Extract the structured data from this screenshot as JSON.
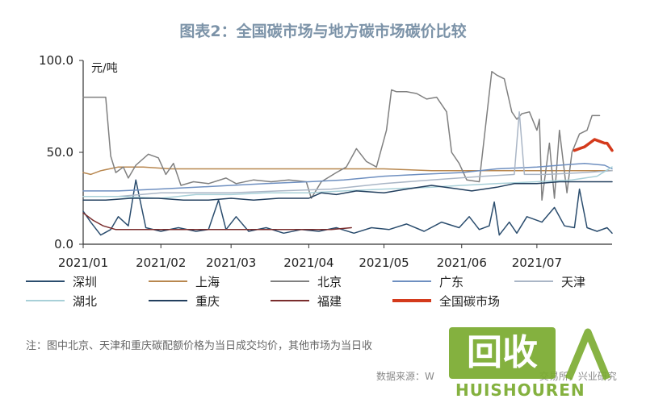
{
  "title": "图表2：全国碳市场与地方碳市场碳价比较",
  "note": "注：图中北京、天津和重庆碳配额价格为当日成交均价，其他市场为当日收",
  "source": "数据来源：W",
  "source_tail": "交易所，兴业研究",
  "watermark": {
    "box_text": "回收",
    "brand": "HUISHOUREN"
  },
  "chart_data": {
    "type": "line",
    "unit_label": "元/吨",
    "ylim": [
      0,
      100
    ],
    "yticks": [
      "0.0",
      "50.0",
      "100.0"
    ],
    "xlim": [
      "2021-01-01",
      "2021-07-31"
    ],
    "xticks": [
      {
        "label": "2021/01",
        "date": "2021-01-01"
      },
      {
        "label": "2021/02",
        "date": "2021-02-01"
      },
      {
        "label": "2021/03",
        "date": "2021-03-01"
      },
      {
        "label": "2021/04",
        "date": "2021-04-01"
      },
      {
        "label": "2021/05",
        "date": "2021-05-01"
      },
      {
        "label": "2021/06",
        "date": "2021-06-01"
      },
      {
        "label": "2021/07",
        "date": "2021-07-01"
      }
    ],
    "grid": false,
    "legend_position": "bottom",
    "series": [
      {
        "name": "深圳",
        "color": "#2b4d6e",
        "width": 1.5,
        "points": [
          [
            "2021-01-01",
            18
          ],
          [
            "2021-01-04",
            12
          ],
          [
            "2021-01-08",
            5
          ],
          [
            "2021-01-12",
            8
          ],
          [
            "2021-01-15",
            15
          ],
          [
            "2021-01-19",
            10
          ],
          [
            "2021-01-22",
            35
          ],
          [
            "2021-01-26",
            9
          ],
          [
            "2021-02-01",
            7
          ],
          [
            "2021-02-08",
            9
          ],
          [
            "2021-02-15",
            7
          ],
          [
            "2021-02-20",
            8
          ],
          [
            "2021-02-24",
            24
          ],
          [
            "2021-02-27",
            8
          ],
          [
            "2021-03-03",
            15
          ],
          [
            "2021-03-08",
            7
          ],
          [
            "2021-03-15",
            9
          ],
          [
            "2021-03-22",
            6
          ],
          [
            "2021-03-29",
            8
          ],
          [
            "2021-04-05",
            7
          ],
          [
            "2021-04-12",
            9
          ],
          [
            "2021-04-19",
            6
          ],
          [
            "2021-04-26",
            9
          ],
          [
            "2021-05-03",
            8
          ],
          [
            "2021-05-10",
            11
          ],
          [
            "2021-05-17",
            7
          ],
          [
            "2021-05-24",
            12
          ],
          [
            "2021-05-31",
            9
          ],
          [
            "2021-06-04",
            15
          ],
          [
            "2021-06-08",
            8
          ],
          [
            "2021-06-12",
            10
          ],
          [
            "2021-06-14",
            23
          ],
          [
            "2021-06-16",
            5
          ],
          [
            "2021-06-20",
            12
          ],
          [
            "2021-06-23",
            6
          ],
          [
            "2021-06-27",
            15
          ],
          [
            "2021-07-03",
            12
          ],
          [
            "2021-07-08",
            20
          ],
          [
            "2021-07-12",
            10
          ],
          [
            "2021-07-16",
            9
          ],
          [
            "2021-07-18",
            30
          ],
          [
            "2021-07-21",
            9
          ],
          [
            "2021-07-25",
            7
          ],
          [
            "2021-07-29",
            9
          ],
          [
            "2021-07-31",
            6
          ]
        ]
      },
      {
        "name": "上海",
        "color": "#b8874f",
        "width": 1.5,
        "points": [
          [
            "2021-01-01",
            39
          ],
          [
            "2021-01-04",
            38
          ],
          [
            "2021-01-08",
            40
          ],
          [
            "2021-01-15",
            42
          ],
          [
            "2021-01-25",
            42
          ],
          [
            "2021-02-05",
            41
          ],
          [
            "2021-02-15",
            41
          ],
          [
            "2021-03-01",
            41
          ],
          [
            "2021-03-20",
            41
          ],
          [
            "2021-04-10",
            41
          ],
          [
            "2021-05-01",
            41
          ],
          [
            "2021-05-20",
            40
          ],
          [
            "2021-06-10",
            40
          ],
          [
            "2021-06-30",
            40
          ],
          [
            "2021-07-15",
            40
          ],
          [
            "2021-07-31",
            40
          ]
        ]
      },
      {
        "name": "北京",
        "color": "#808080",
        "width": 1.5,
        "points": [
          [
            "2021-01-01",
            80
          ],
          [
            "2021-01-10",
            80
          ],
          [
            "2021-01-12",
            48
          ],
          [
            "2021-01-14",
            39
          ],
          [
            "2021-01-17",
            42
          ],
          [
            "2021-01-19",
            36
          ],
          [
            "2021-01-22",
            43
          ],
          [
            "2021-01-27",
            49
          ],
          [
            "2021-01-31",
            47
          ],
          [
            "2021-02-03",
            38
          ],
          [
            "2021-02-06",
            44
          ],
          [
            "2021-02-09",
            32
          ],
          [
            "2021-02-14",
            34
          ],
          [
            "2021-02-20",
            33
          ],
          [
            "2021-02-27",
            36
          ],
          [
            "2021-03-03",
            33
          ],
          [
            "2021-03-10",
            35
          ],
          [
            "2021-03-17",
            34
          ],
          [
            "2021-03-24",
            35
          ],
          [
            "2021-03-31",
            34
          ],
          [
            "2021-04-02",
            25
          ],
          [
            "2021-04-06",
            34
          ],
          [
            "2021-04-12",
            39
          ],
          [
            "2021-04-16",
            42
          ],
          [
            "2021-04-20",
            52
          ],
          [
            "2021-04-24",
            45
          ],
          [
            "2021-04-28",
            42
          ],
          [
            "2021-05-02",
            62
          ],
          [
            "2021-05-04",
            84
          ],
          [
            "2021-05-06",
            83
          ],
          [
            "2021-05-10",
            83
          ],
          [
            "2021-05-14",
            82
          ],
          [
            "2021-05-18",
            79
          ],
          [
            "2021-05-22",
            80
          ],
          [
            "2021-05-26",
            72
          ],
          [
            "2021-05-28",
            50
          ],
          [
            "2021-05-31",
            44
          ],
          [
            "2021-06-03",
            35
          ],
          [
            "2021-06-08",
            34
          ],
          [
            "2021-06-13",
            94
          ],
          [
            "2021-06-15",
            92
          ],
          [
            "2021-06-18",
            90
          ],
          [
            "2021-06-21",
            72
          ],
          [
            "2021-06-23",
            68
          ],
          [
            "2021-06-25",
            71
          ],
          [
            "2021-06-28",
            72
          ],
          [
            "2021-07-01",
            62
          ],
          [
            "2021-07-02",
            68
          ],
          [
            "2021-07-03",
            24
          ],
          [
            "2021-07-06",
            55
          ],
          [
            "2021-07-08",
            25
          ],
          [
            "2021-07-10",
            62
          ],
          [
            "2021-07-13",
            28
          ],
          [
            "2021-07-15",
            50
          ],
          [
            "2021-07-18",
            60
          ],
          [
            "2021-07-21",
            62
          ],
          [
            "2021-07-23",
            70
          ],
          [
            "2021-07-26",
            70
          ]
        ]
      },
      {
        "name": "广东",
        "color": "#6e8fc0",
        "width": 1.5,
        "points": [
          [
            "2021-01-01",
            29
          ],
          [
            "2021-01-15",
            29
          ],
          [
            "2021-01-31",
            30
          ],
          [
            "2021-02-15",
            31
          ],
          [
            "2021-03-01",
            32
          ],
          [
            "2021-03-15",
            33
          ],
          [
            "2021-04-01",
            34
          ],
          [
            "2021-04-15",
            35
          ],
          [
            "2021-05-01",
            37
          ],
          [
            "2021-05-15",
            38
          ],
          [
            "2021-06-01",
            39
          ],
          [
            "2021-06-15",
            41
          ],
          [
            "2021-07-01",
            42
          ],
          [
            "2021-07-10",
            43
          ],
          [
            "2021-07-20",
            44
          ],
          [
            "2021-07-28",
            43
          ],
          [
            "2021-07-31",
            41
          ]
        ]
      },
      {
        "name": "天津",
        "color": "#aab6c6",
        "width": 1.5,
        "points": [
          [
            "2021-01-01",
            26
          ],
          [
            "2021-01-15",
            26
          ],
          [
            "2021-02-01",
            28
          ],
          [
            "2021-02-15",
            28
          ],
          [
            "2021-03-01",
            28
          ],
          [
            "2021-03-20",
            29
          ],
          [
            "2021-04-10",
            30
          ],
          [
            "2021-05-01",
            33
          ],
          [
            "2021-05-20",
            35
          ],
          [
            "2021-06-10",
            37
          ],
          [
            "2021-06-22",
            38
          ],
          [
            "2021-06-24",
            72
          ],
          [
            "2021-06-26",
            38
          ],
          [
            "2021-07-05",
            38
          ],
          [
            "2021-07-20",
            39
          ],
          [
            "2021-07-31",
            40
          ]
        ]
      },
      {
        "name": "湖北",
        "color": "#a8d0d8",
        "width": 1.5,
        "points": [
          [
            "2021-01-01",
            26
          ],
          [
            "2021-01-15",
            26
          ],
          [
            "2021-02-01",
            25
          ],
          [
            "2021-02-15",
            27
          ],
          [
            "2021-03-01",
            27
          ],
          [
            "2021-03-15",
            28
          ],
          [
            "2021-04-01",
            28
          ],
          [
            "2021-04-15",
            29
          ],
          [
            "2021-05-01",
            30
          ],
          [
            "2021-05-20",
            31
          ],
          [
            "2021-06-01",
            32
          ],
          [
            "2021-06-15",
            33
          ],
          [
            "2021-07-01",
            34
          ],
          [
            "2021-07-15",
            35
          ],
          [
            "2021-07-25",
            37
          ],
          [
            "2021-07-31",
            42
          ]
        ]
      },
      {
        "name": "重庆",
        "color": "#223f5e",
        "width": 1.5,
        "points": [
          [
            "2021-01-01",
            24
          ],
          [
            "2021-01-10",
            24
          ],
          [
            "2021-01-20",
            25
          ],
          [
            "2021-01-31",
            25
          ],
          [
            "2021-02-10",
            24
          ],
          [
            "2021-02-20",
            24
          ],
          [
            "2021-03-01",
            25
          ],
          [
            "2021-03-10",
            24
          ],
          [
            "2021-03-20",
            25
          ],
          [
            "2021-04-01",
            25
          ],
          [
            "2021-04-06",
            28
          ],
          [
            "2021-04-12",
            27
          ],
          [
            "2021-04-20",
            29
          ],
          [
            "2021-05-01",
            28
          ],
          [
            "2021-05-10",
            30
          ],
          [
            "2021-05-20",
            32
          ],
          [
            "2021-05-31",
            30
          ],
          [
            "2021-06-05",
            29
          ],
          [
            "2021-06-15",
            31
          ],
          [
            "2021-06-22",
            33
          ],
          [
            "2021-07-01",
            33
          ],
          [
            "2021-07-10",
            34
          ],
          [
            "2021-07-20",
            34
          ],
          [
            "2021-07-31",
            34
          ]
        ]
      },
      {
        "name": "福建",
        "color": "#7a2d2d",
        "width": 1.5,
        "points": [
          [
            "2021-01-01",
            17
          ],
          [
            "2021-01-05",
            13
          ],
          [
            "2021-01-09",
            10
          ],
          [
            "2021-01-14",
            8
          ],
          [
            "2021-02-01",
            8
          ],
          [
            "2021-03-01",
            8
          ],
          [
            "2021-04-01",
            8
          ],
          [
            "2021-04-10",
            8
          ],
          [
            "2021-04-18",
            9
          ]
        ]
      },
      {
        "name": "全国碳市场",
        "color": "#d43a1c",
        "width": 3.5,
        "points": [
          [
            "2021-07-16",
            51
          ],
          [
            "2021-07-18",
            52
          ],
          [
            "2021-07-20",
            53
          ],
          [
            "2021-07-22",
            55
          ],
          [
            "2021-07-24",
            57
          ],
          [
            "2021-07-26",
            56
          ],
          [
            "2021-07-28",
            55
          ],
          [
            "2021-07-29",
            55
          ],
          [
            "2021-07-31",
            51
          ]
        ]
      }
    ]
  }
}
